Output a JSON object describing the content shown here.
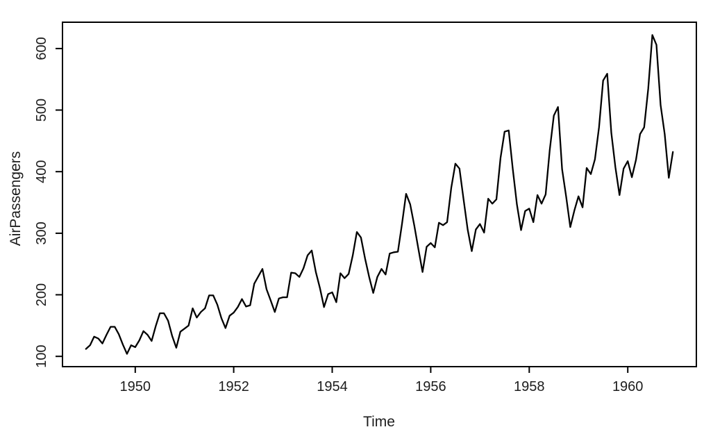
{
  "chart_data": {
    "type": "line",
    "title": "",
    "xlabel": "Time",
    "ylabel": "AirPassengers",
    "x_start": 1949,
    "frequency": 12,
    "series": [
      {
        "name": "AirPassengers",
        "values": [
          112,
          118,
          132,
          129,
          121,
          135,
          148,
          148,
          136,
          119,
          104,
          118,
          115,
          126,
          141,
          135,
          125,
          149,
          170,
          170,
          158,
          133,
          114,
          140,
          145,
          150,
          178,
          163,
          172,
          178,
          199,
          199,
          184,
          162,
          146,
          166,
          171,
          180,
          193,
          181,
          183,
          218,
          230,
          242,
          209,
          191,
          172,
          194,
          196,
          196,
          236,
          235,
          229,
          243,
          264,
          272,
          237,
          211,
          180,
          201,
          204,
          188,
          235,
          227,
          234,
          264,
          302,
          293,
          259,
          229,
          203,
          229,
          242,
          233,
          267,
          269,
          270,
          315,
          364,
          347,
          312,
          274,
          237,
          278,
          284,
          277,
          317,
          313,
          318,
          374,
          413,
          405,
          355,
          306,
          271,
          306,
          315,
          301,
          356,
          348,
          355,
          422,
          465,
          467,
          404,
          347,
          305,
          336,
          340,
          318,
          362,
          348,
          363,
          435,
          491,
          505,
          404,
          359,
          310,
          337,
          360,
          342,
          406,
          396,
          420,
          472,
          548,
          559,
          463,
          407,
          362,
          405,
          417,
          391,
          419,
          461,
          472,
          535,
          622,
          606,
          508,
          461,
          390,
          432
        ]
      }
    ],
    "x_ticks": [
      1950,
      1952,
      1954,
      1956,
      1958,
      1960
    ],
    "y_ticks": [
      100,
      200,
      300,
      400,
      500,
      600
    ],
    "xlim": [
      1948.5233,
      1961.3933
    ],
    "ylim": [
      83.28,
      642.72
    ],
    "grid": false,
    "legend": false,
    "line_color": "#000000",
    "axis_color": "#000000",
    "background_color": "#ffffff"
  }
}
